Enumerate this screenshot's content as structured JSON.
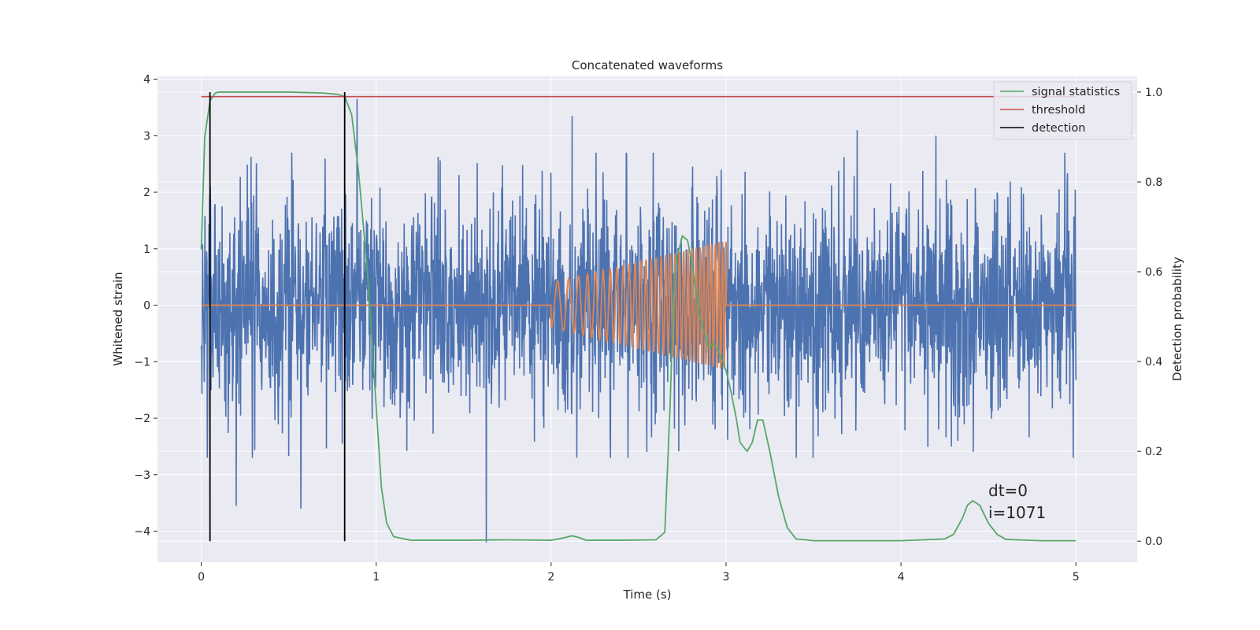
{
  "chart_data": {
    "type": "line",
    "title": "Concatenated waveforms",
    "xlabel": "Time (s)",
    "ylabel": "Whitened strain",
    "y2label": "Detection probability",
    "xlim": [
      -0.25,
      5.35
    ],
    "ylim": [
      -4.55,
      4.05
    ],
    "y2lim": [
      -0.047,
      1.035
    ],
    "xticks": [
      "0",
      "1",
      "2",
      "3",
      "4",
      "5"
    ],
    "yticks": [
      "4",
      "3",
      "2",
      "1",
      "0",
      "−1",
      "−2",
      "−3",
      "−4"
    ],
    "y2ticks": [
      "1.0",
      "0.8",
      "0.6",
      "0.4",
      "0.2",
      "0.0"
    ],
    "grid": true,
    "legend": {
      "placement": "top-right",
      "entries": [
        {
          "label": "signal statistics",
          "color": "#55a868"
        },
        {
          "label": "threshold",
          "color": "#c44e52"
        },
        {
          "label": "detection",
          "color": "#000000"
        }
      ]
    },
    "annotations": [
      "dt=0",
      "i=1071"
    ],
    "series": [
      {
        "role": "whitened strain (noise)",
        "color": "#4c72b0",
        "x_range": [
          0,
          5
        ],
        "typical_range": [
          -2.0,
          2.0
        ],
        "extremes": [
          [
            0.05,
            -3.4
          ],
          [
            0.2,
            -3.55
          ],
          [
            0.57,
            -3.6
          ],
          [
            0.89,
            3.65
          ],
          [
            1.63,
            -4.2
          ],
          [
            2.12,
            3.35
          ],
          [
            3.75,
            3.1
          ],
          [
            4.2,
            3.0
          ]
        ]
      },
      {
        "role": "injected chirp",
        "color": "#dd8452",
        "t_start": 2.0,
        "t_end": 3.0,
        "amp_start": 0.4,
        "amp_end": 1.15,
        "freq_start": 13,
        "freq_end": 50
      },
      {
        "name": "signal statistics",
        "axis": "right",
        "color": "#55a868",
        "x": [
          0,
          0.02,
          0.05,
          0.08,
          0.1,
          0.15,
          0.3,
          0.5,
          0.7,
          0.78,
          0.82,
          0.86,
          0.9,
          0.95,
          1.0,
          1.03,
          1.06,
          1.1,
          1.2,
          1.5,
          1.75,
          2.0,
          2.08,
          2.12,
          2.16,
          2.2,
          2.4,
          2.6,
          2.65,
          2.68,
          2.7,
          2.72,
          2.75,
          2.78,
          2.8,
          2.85,
          2.9,
          2.93,
          2.96,
          3.0,
          3.03,
          3.06,
          3.08,
          3.12,
          3.15,
          3.18,
          3.21,
          3.25,
          3.3,
          3.35,
          3.4,
          3.5,
          4.0,
          4.25,
          4.3,
          4.35,
          4.38,
          4.41,
          4.45,
          4.5,
          4.55,
          4.6,
          4.8,
          5.0
        ],
        "y": [
          0.65,
          0.9,
          0.98,
          0.998,
          1.0,
          1.0,
          1.0,
          1.0,
          0.998,
          0.995,
          0.99,
          0.95,
          0.82,
          0.6,
          0.3,
          0.12,
          0.04,
          0.01,
          0.002,
          0.002,
          0.003,
          0.002,
          0.008,
          0.012,
          0.008,
          0.002,
          0.002,
          0.003,
          0.02,
          0.3,
          0.55,
          0.63,
          0.68,
          0.67,
          0.63,
          0.5,
          0.43,
          0.44,
          0.42,
          0.38,
          0.33,
          0.27,
          0.22,
          0.2,
          0.22,
          0.27,
          0.27,
          0.2,
          0.1,
          0.03,
          0.005,
          0.001,
          0.001,
          0.005,
          0.015,
          0.05,
          0.08,
          0.09,
          0.08,
          0.04,
          0.015,
          0.004,
          0.001,
          0.001
        ]
      },
      {
        "name": "threshold",
        "axis": "right",
        "color": "#c44e52",
        "x": [
          0,
          5
        ],
        "y": [
          0.99,
          0.99
        ]
      },
      {
        "name": "detection",
        "axis": "right",
        "color": "#000000",
        "type": "vlines",
        "x": [
          0.05,
          0.82
        ],
        "y_range": [
          0.0,
          1.0
        ]
      }
    ]
  }
}
